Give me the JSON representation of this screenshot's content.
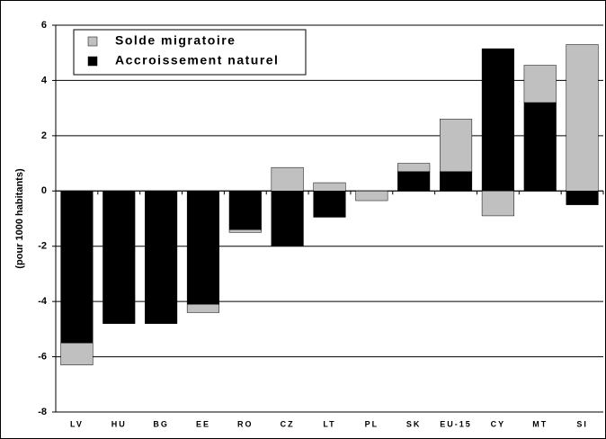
{
  "chart_data": {
    "type": "stacked_bar",
    "categories": [
      "LV",
      "HU",
      "BG",
      "EE",
      "RO",
      "CZ",
      "LT",
      "PL",
      "SK",
      "EU-15",
      "CY",
      "MT",
      "SI"
    ],
    "series": [
      {
        "name": "Solde migratoire",
        "color": "#c0c0c0",
        "values": [
          -0.8,
          0,
          0,
          -0.3,
          -0.1,
          0.85,
          0.3,
          -0.35,
          0.3,
          1.9,
          -0.9,
          1.35,
          5.3
        ]
      },
      {
        "name": "Accroissement naturel",
        "color": "#000000",
        "values": [
          -5.5,
          -4.8,
          -4.8,
          -4.1,
          -1.4,
          -2.0,
          -0.95,
          0,
          0.7,
          0.7,
          5.15,
          3.2,
          -0.5
        ]
      }
    ],
    "y_label": "(pour 1000 habitants)",
    "ylim": [
      -8,
      6
    ],
    "yticks": [
      -8,
      -6,
      -4,
      -2,
      0,
      2,
      4,
      6
    ],
    "grid": true,
    "legend": "upper left"
  }
}
